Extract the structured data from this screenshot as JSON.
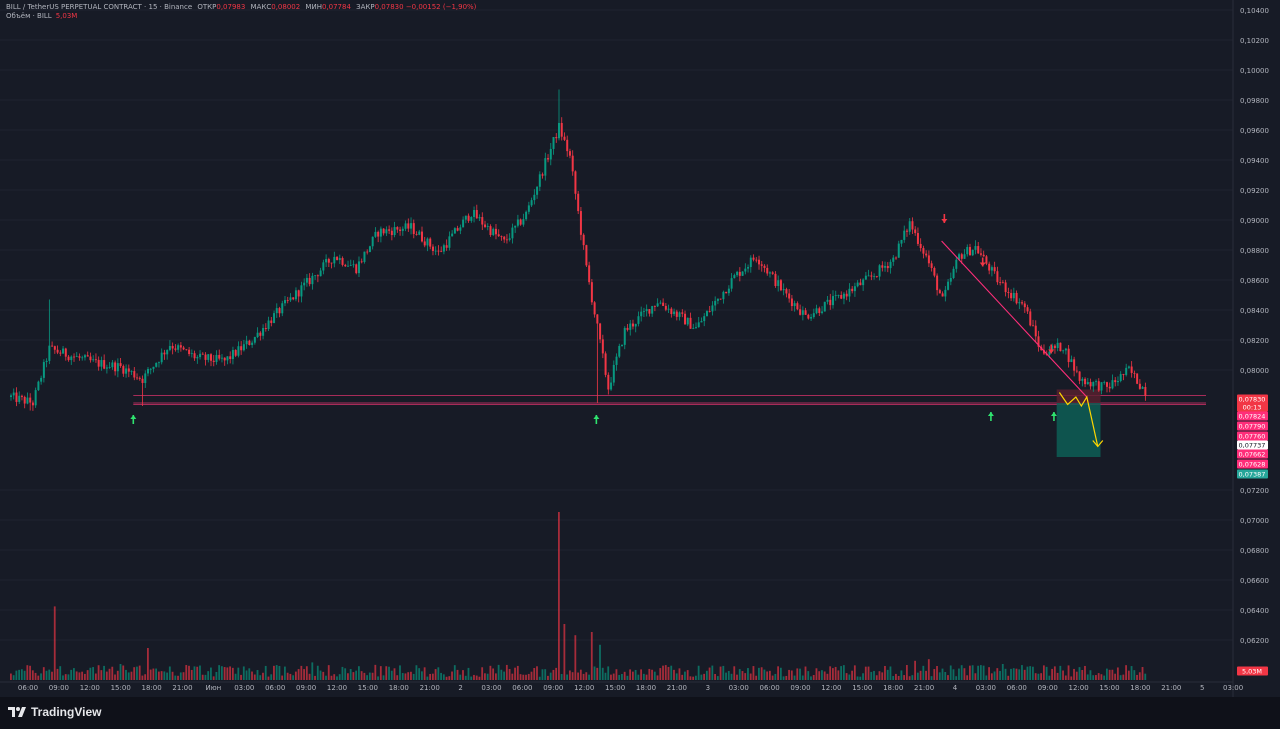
{
  "header": {
    "symbol": "BILL / TetherUS PERPETUAL CONTRACT · 15 · Binance",
    "open_label": "ОТКР",
    "open_value": "0,07983",
    "high_label": "МАКС",
    "high_value": "0,08002",
    "low_label": "МИН",
    "low_value": "0,07784",
    "close_label": "ЗАКР",
    "close_value": "0,07830",
    "change_value": "−0,00152 (−1,90%)",
    "volume_label": "Объём · BILL",
    "volume_value": "5,03M"
  },
  "brand": {
    "name": "TradingView"
  },
  "colors": {
    "background": "#171b26",
    "up": "#089981",
    "down": "#f23645",
    "trendline": "#ff2e7a",
    "projection": "#ffd700",
    "target_zone": "#0d5e56"
  },
  "chart_data": {
    "type": "candlestick",
    "title": "BILL / TetherUS PERPETUAL CONTRACT · 15 · Binance",
    "y_ticks": [
      "0,10400",
      "0,10200",
      "0,10000",
      "0,09800",
      "0,09600",
      "0,09400",
      "0,09200",
      "0,09000",
      "0,08800",
      "0,08600",
      "0,08400",
      "0,08200",
      "0,08000",
      "0,07200",
      "0,07000",
      "0,06800",
      "0,06600",
      "0,06400",
      "0,06200"
    ],
    "x_ticks": [
      "06:00",
      "09:00",
      "12:00",
      "15:00",
      "18:00",
      "21:00",
      "Июн",
      "03:00",
      "06:00",
      "09:00",
      "12:00",
      "15:00",
      "18:00",
      "21:00",
      "2",
      "03:00",
      "06:00",
      "09:00",
      "12:00",
      "15:00",
      "18:00",
      "21:00",
      "3",
      "03:00",
      "06:00",
      "09:00",
      "12:00",
      "15:00",
      "18:00",
      "21:00",
      "4",
      "03:00",
      "06:00",
      "09:00",
      "12:00",
      "15:00",
      "18:00",
      "21:00",
      "5",
      "03:00"
    ],
    "price_labels": [
      {
        "text": "0,07830",
        "color": "#f23645"
      },
      {
        "text": "00:13",
        "color": "#f23645"
      },
      {
        "text": "0,07824",
        "color": "#ff2e7a"
      },
      {
        "text": "0,07790",
        "color": "#ff2e7a"
      },
      {
        "text": "0,07737",
        "color": "#ffffff"
      },
      {
        "text": "0,07760",
        "color": "#ff2e7a"
      },
      {
        "text": "0,07662",
        "color": "#ff2e7a"
      },
      {
        "text": "0,07628",
        "color": "#ff2e7a"
      },
      {
        "text": "0,07387",
        "color": "#26a69a"
      },
      {
        "text": "5,03M",
        "color": "#f23645"
      }
    ],
    "close_anchors": [
      {
        "x": 0,
        "y": 0.0782
      },
      {
        "x": 8,
        "y": 0.0778
      },
      {
        "x": 14,
        "y": 0.0814
      },
      {
        "x": 30,
        "y": 0.0805
      },
      {
        "x": 40,
        "y": 0.0802
      },
      {
        "x": 48,
        "y": 0.0794
      },
      {
        "x": 58,
        "y": 0.0817
      },
      {
        "x": 68,
        "y": 0.0808
      },
      {
        "x": 78,
        "y": 0.0806
      },
      {
        "x": 88,
        "y": 0.082
      },
      {
        "x": 96,
        "y": 0.0836
      },
      {
        "x": 108,
        "y": 0.0858
      },
      {
        "x": 118,
        "y": 0.0876
      },
      {
        "x": 126,
        "y": 0.0868
      },
      {
        "x": 134,
        "y": 0.0892
      },
      {
        "x": 146,
        "y": 0.0895
      },
      {
        "x": 156,
        "y": 0.0878
      },
      {
        "x": 168,
        "y": 0.0905
      },
      {
        "x": 180,
        "y": 0.0885
      },
      {
        "x": 188,
        "y": 0.0904
      },
      {
        "x": 200,
        "y": 0.0962
      },
      {
        "x": 204,
        "y": 0.0942
      },
      {
        "x": 210,
        "y": 0.0868
      },
      {
        "x": 218,
        "y": 0.0788
      },
      {
        "x": 224,
        "y": 0.0826
      },
      {
        "x": 236,
        "y": 0.0846
      },
      {
        "x": 250,
        "y": 0.0828
      },
      {
        "x": 264,
        "y": 0.0862
      },
      {
        "x": 272,
        "y": 0.0876
      },
      {
        "x": 282,
        "y": 0.0852
      },
      {
        "x": 290,
        "y": 0.0836
      },
      {
        "x": 302,
        "y": 0.0848
      },
      {
        "x": 314,
        "y": 0.0862
      },
      {
        "x": 322,
        "y": 0.0874
      },
      {
        "x": 328,
        "y": 0.0898
      },
      {
        "x": 334,
        "y": 0.0876
      },
      {
        "x": 340,
        "y": 0.0846
      },
      {
        "x": 346,
        "y": 0.0876
      },
      {
        "x": 352,
        "y": 0.0882
      },
      {
        "x": 360,
        "y": 0.086
      },
      {
        "x": 370,
        "y": 0.0842
      },
      {
        "x": 376,
        "y": 0.0812
      },
      {
        "x": 384,
        "y": 0.0816
      },
      {
        "x": 390,
        "y": 0.0794
      },
      {
        "x": 400,
        "y": 0.0788
      },
      {
        "x": 408,
        "y": 0.08
      },
      {
        "x": 414,
        "y": 0.0786
      }
    ],
    "volumes": [
      {
        "x": 16,
        "v": 4.6
      },
      {
        "x": 40,
        "v": 1.0
      },
      {
        "x": 50,
        "v": 2.0
      },
      {
        "x": 200,
        "v": 10.5
      },
      {
        "x": 202,
        "v": 3.5
      },
      {
        "x": 206,
        "v": 2.8
      },
      {
        "x": 212,
        "v": 3.0
      },
      {
        "x": 215,
        "v": 2.2
      },
      {
        "x": 110,
        "v": 1.1
      },
      {
        "x": 330,
        "v": 1.2
      },
      {
        "x": 335,
        "v": 1.3
      },
      {
        "x": 362,
        "v": 1.0
      }
    ],
    "trendline": [
      {
        "x": 340,
        "y": 0.0886
      },
      {
        "x": 393,
        "y": 0.0782
      }
    ],
    "horizontal_lines": [
      0.0777,
      0.0778,
      0.0783
    ],
    "green_arrows": [
      {
        "x": 45,
        "y": 0.077
      },
      {
        "x": 214,
        "y": 0.077
      },
      {
        "x": 358,
        "y": 0.0772
      },
      {
        "x": 381,
        "y": 0.0772
      }
    ],
    "red_arrows": [
      {
        "x": 341,
        "y": 0.0898
      },
      {
        "x": 355,
        "y": 0.0869
      },
      {
        "x": 380,
        "y": 0.0811
      }
    ],
    "projection": [
      {
        "x": 383,
        "y": 0.0785
      },
      {
        "x": 386,
        "y": 0.0777
      },
      {
        "x": 389,
        "y": 0.0782
      },
      {
        "x": 391,
        "y": 0.0776
      },
      {
        "x": 393,
        "y": 0.0782
      },
      {
        "x": 397,
        "y": 0.0749
      }
    ],
    "target_zone": {
      "x_from": 382,
      "x_to": 398,
      "y_from": 0.0778,
      "y_to": 0.0742
    }
  }
}
